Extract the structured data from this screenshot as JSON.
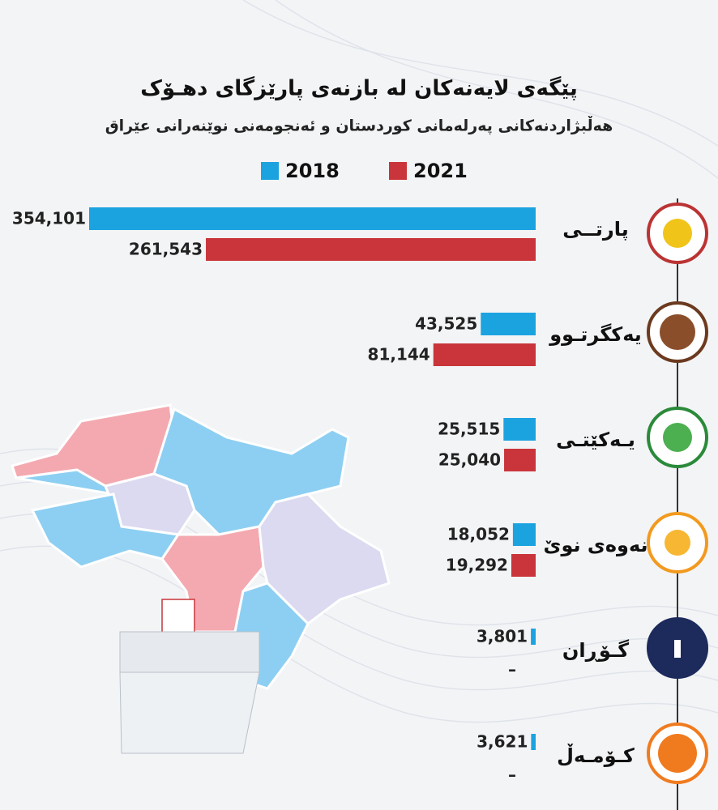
{
  "chart_data": {
    "type": "bar",
    "orientation": "horizontal",
    "title": "پێگەی لایەنەکان لە بازنەی پارێزگای دهـۆک",
    "subtitle": "هەڵبژاردنەکانی پەرلەمانی کوردستان و ئەنجومەنی نوێنەرانی عێراق",
    "categories": [
      "پارتــی",
      "یەکگرتـوو",
      "یـەکێتـی",
      "نەوەی نوێ",
      "گـۆڕان",
      "کـۆمـەڵ"
    ],
    "series": [
      {
        "name": "2018",
        "color": "#1ba3e0",
        "values": [
          354101,
          43525,
          25515,
          18052,
          3801,
          3621
        ],
        "value_labels": [
          "354,101",
          "43,525",
          "25,515",
          "18,052",
          "3,801",
          "3,621"
        ]
      },
      {
        "name": "2021",
        "color": "#c9353a",
        "values": [
          261543,
          81144,
          25040,
          19292,
          null,
          null
        ],
        "value_labels": [
          "261,543",
          "81,144",
          "25,040",
          "19,292",
          "–",
          "–"
        ]
      }
    ]
  }
}
